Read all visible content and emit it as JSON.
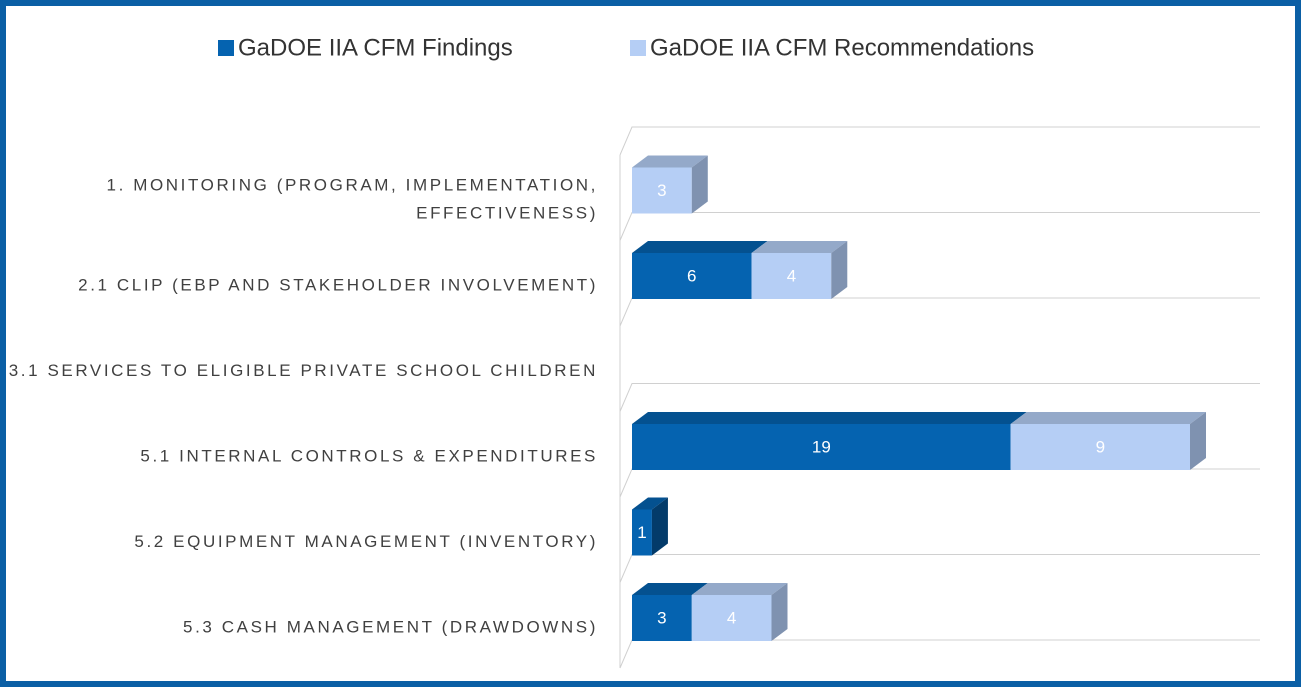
{
  "chart_data": {
    "type": "bar3d_stacked_horizontal",
    "categories": [
      "1. MONITORING (PROGRAM, IMPLEMENTATION, EFFECTIVENESS)",
      "2.1 CLIP (EBP AND STAKEHOLDER INVOLVEMENT)",
      "3.1 SERVICES TO ELIGIBLE PRIVATE SCHOOL CHILDREN",
      "5.1 INTERNAL CONTROLS & EXPENDITURES",
      "5.2 EQUIPMENT MANAGEMENT (INVENTORY)",
      "5.3 CASH MANAGEMENT (DRAWDOWNS)"
    ],
    "series": [
      {
        "name": "GaDOE IIA CFM Findings",
        "color": "#0563b0",
        "values": [
          null,
          6,
          null,
          19,
          1,
          3
        ]
      },
      {
        "name": "GaDOE IIA CFM Recommendations",
        "color": "#b5cef5",
        "values": [
          3,
          4,
          null,
          9,
          null,
          4
        ]
      }
    ],
    "legend": "top",
    "grid": true
  }
}
